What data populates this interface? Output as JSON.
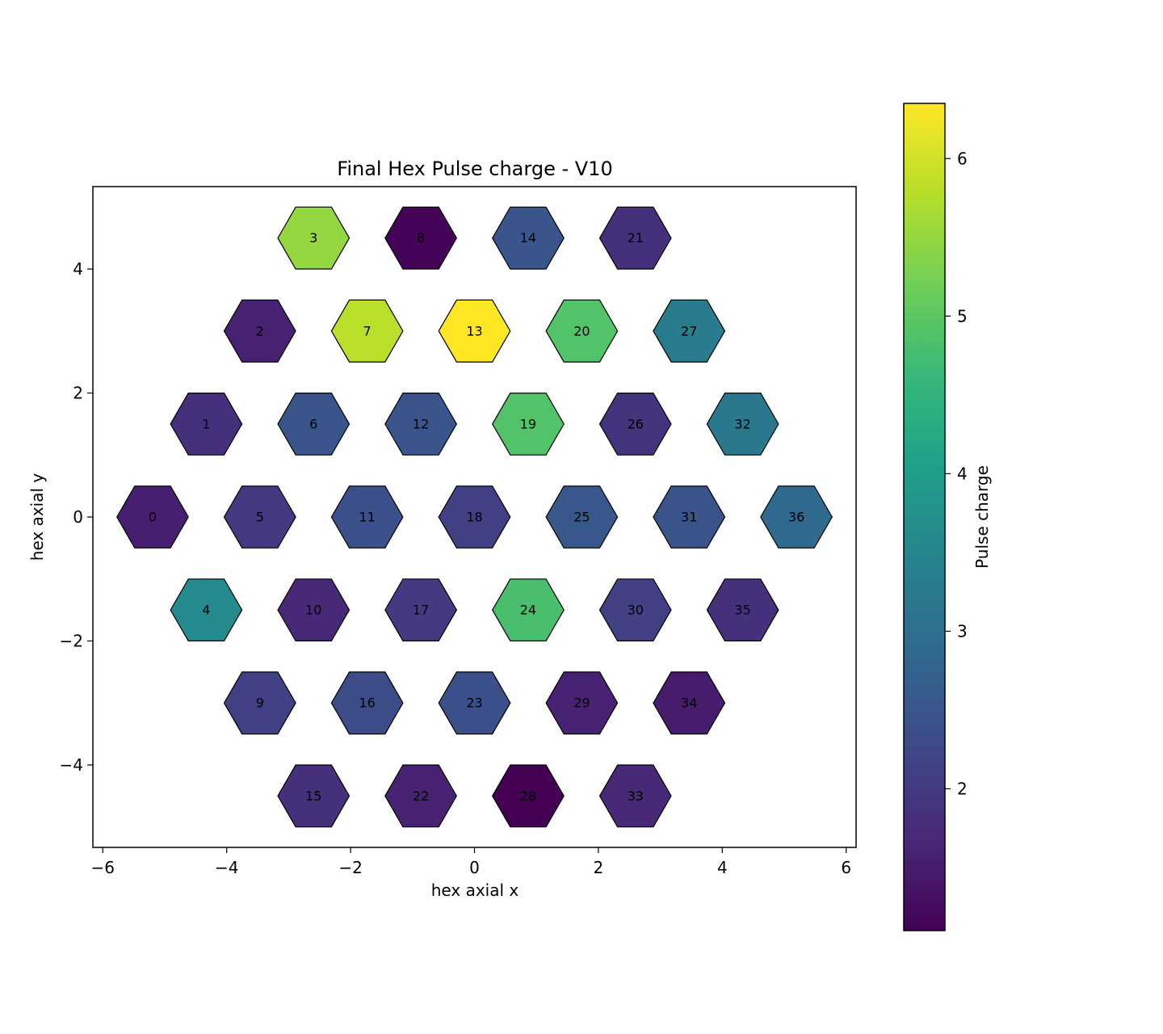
{
  "chart_data": {
    "type": "heatmap",
    "title": "Final Hex Pulse charge - V10",
    "xlabel": "hex axial x",
    "ylabel": "hex axial y",
    "colorbar_label": "Pulse charge",
    "xlim": [
      -6.16,
      6.16
    ],
    "ylim": [
      -5.33,
      5.33
    ],
    "xticks": [
      -6,
      -4,
      -2,
      0,
      2,
      4,
      6
    ],
    "yticks": [
      -4,
      -2,
      0,
      2,
      4
    ],
    "xtick_labels": [
      "−6",
      "−4",
      "−2",
      "0",
      "2",
      "4",
      "6"
    ],
    "ytick_labels": [
      "−4",
      "−2",
      "0",
      "2",
      "4"
    ],
    "colorbar_range": [
      1.1,
      6.35
    ],
    "colorbar_ticks": [
      2,
      3,
      4,
      5,
      6
    ],
    "colorbar_tick_labels": [
      "2",
      "3",
      "4",
      "5",
      "6"
    ],
    "colormap": "viridis",
    "colormap_stops": [
      "#440154",
      "#482878",
      "#3e4989",
      "#31688e",
      "#26828e",
      "#1f9e89",
      "#35b779",
      "#6ece58",
      "#b5de2b",
      "#fde725"
    ],
    "edge_color": "#000000",
    "cells": [
      {
        "id": "0",
        "x": -5.196,
        "y": 0.0,
        "value": 1.55
      },
      {
        "id": "1",
        "x": -4.33,
        "y": 1.5,
        "value": 1.8
      },
      {
        "id": "2",
        "x": -3.464,
        "y": 3.0,
        "value": 1.6
      },
      {
        "id": "3",
        "x": -2.598,
        "y": 4.5,
        "value": 5.5
      },
      {
        "id": "4",
        "x": -4.33,
        "y": -1.5,
        "value": 3.6
      },
      {
        "id": "5",
        "x": -3.464,
        "y": 0.0,
        "value": 2.0
      },
      {
        "id": "6",
        "x": -2.598,
        "y": 1.5,
        "value": 2.5
      },
      {
        "id": "7",
        "x": -1.732,
        "y": 3.0,
        "value": 5.8
      },
      {
        "id": "8",
        "x": -0.866,
        "y": 4.5,
        "value": 1.15
      },
      {
        "id": "9",
        "x": -3.464,
        "y": -3.0,
        "value": 2.1
      },
      {
        "id": "10",
        "x": -2.598,
        "y": -1.5,
        "value": 1.7
      },
      {
        "id": "11",
        "x": -1.732,
        "y": 0.0,
        "value": 2.4
      },
      {
        "id": "12",
        "x": -0.866,
        "y": 1.5,
        "value": 2.5
      },
      {
        "id": "13",
        "x": 0.0,
        "y": 3.0,
        "value": 6.35
      },
      {
        "id": "14",
        "x": 0.866,
        "y": 4.5,
        "value": 2.5
      },
      {
        "id": "15",
        "x": -2.598,
        "y": -4.5,
        "value": 1.8
      },
      {
        "id": "16",
        "x": -1.732,
        "y": -3.0,
        "value": 2.3
      },
      {
        "id": "17",
        "x": -0.866,
        "y": -1.5,
        "value": 2.0
      },
      {
        "id": "18",
        "x": 0.0,
        "y": 0.0,
        "value": 2.1
      },
      {
        "id": "19",
        "x": 0.866,
        "y": 1.5,
        "value": 4.9
      },
      {
        "id": "20",
        "x": 1.732,
        "y": 3.0,
        "value": 4.9
      },
      {
        "id": "21",
        "x": 2.598,
        "y": 4.5,
        "value": 1.8
      },
      {
        "id": "22",
        "x": -0.866,
        "y": -4.5,
        "value": 1.6
      },
      {
        "id": "23",
        "x": 0.0,
        "y": -3.0,
        "value": 2.4
      },
      {
        "id": "24",
        "x": 0.866,
        "y": -1.5,
        "value": 4.8
      },
      {
        "id": "25",
        "x": 1.732,
        "y": 0.0,
        "value": 2.55
      },
      {
        "id": "26",
        "x": 2.598,
        "y": 1.5,
        "value": 1.9
      },
      {
        "id": "27",
        "x": 3.464,
        "y": 3.0,
        "value": 3.3
      },
      {
        "id": "28",
        "x": 0.866,
        "y": -4.5,
        "value": 1.1
      },
      {
        "id": "29",
        "x": 1.732,
        "y": -3.0,
        "value": 1.6
      },
      {
        "id": "30",
        "x": 2.598,
        "y": -1.5,
        "value": 2.1
      },
      {
        "id": "31",
        "x": 3.464,
        "y": 0.0,
        "value": 2.45
      },
      {
        "id": "32",
        "x": 4.33,
        "y": 1.5,
        "value": 3.2
      },
      {
        "id": "33",
        "x": 2.598,
        "y": -4.5,
        "value": 1.7
      },
      {
        "id": "34",
        "x": 3.464,
        "y": -3.0,
        "value": 1.5
      },
      {
        "id": "35",
        "x": 4.33,
        "y": -1.5,
        "value": 1.8
      },
      {
        "id": "36",
        "x": 5.196,
        "y": 0.0,
        "value": 2.9
      }
    ]
  }
}
